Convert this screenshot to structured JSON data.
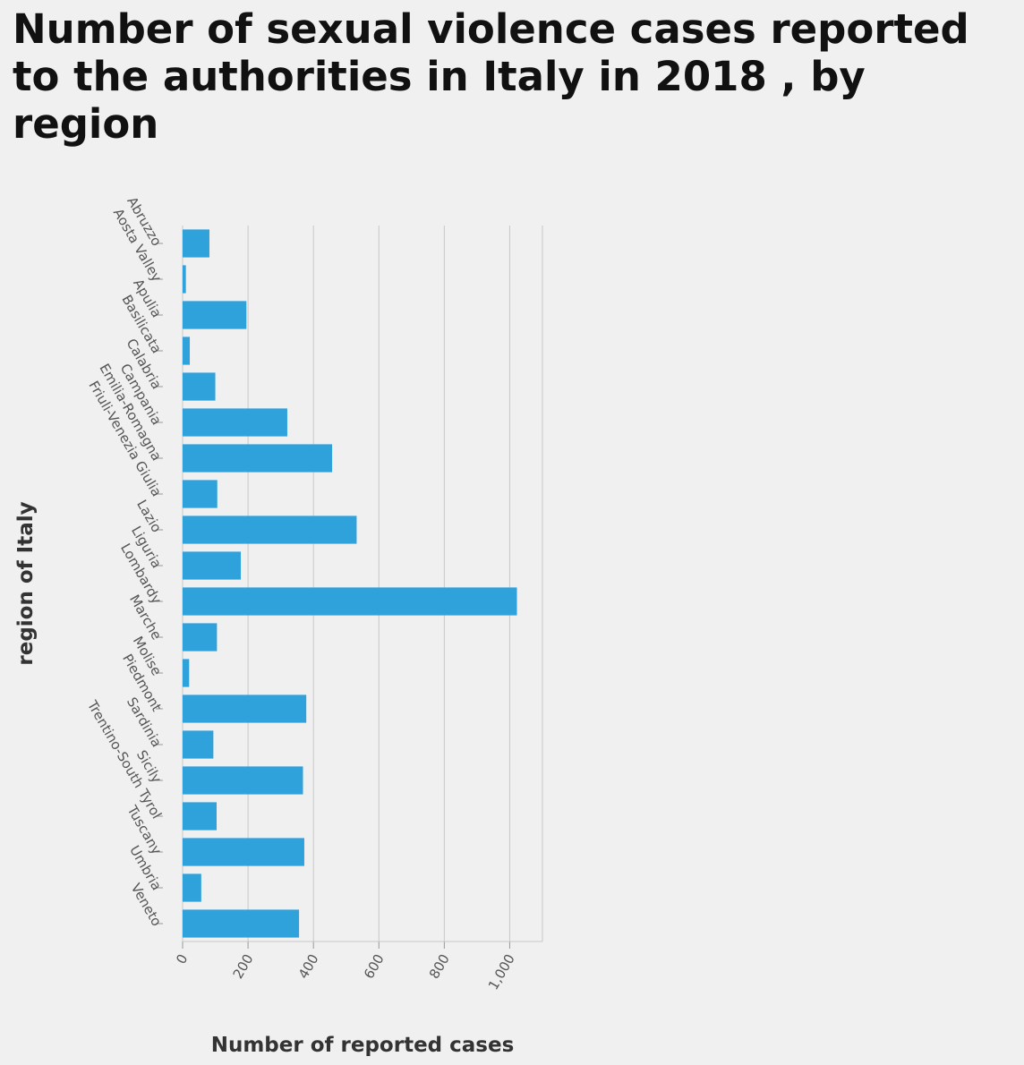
{
  "chart_data": {
    "type": "bar",
    "orientation": "horizontal",
    "title": "Number of sexual violence cases reported to the authorities in Italy in 2018 , by region",
    "xlabel": "Number of reported cases",
    "ylabel": "region of Italy",
    "categories": [
      "Abruzzo",
      "Aosta Valley",
      "Apulia",
      "Basilicata",
      "Calabria",
      "Campania",
      "Emilia-Romagna",
      "Friuli-Venezia Giulia",
      "Lazio",
      "Liguria",
      "Lombardy",
      "Marche",
      "Molise",
      "Piedmont",
      "Sardinia",
      "Sicily",
      "Trentino-South Tyrol",
      "Tuscany",
      "Umbria",
      "Veneto"
    ],
    "values": [
      82,
      10,
      195,
      22,
      100,
      320,
      457,
      106,
      532,
      178,
      1022,
      105,
      20,
      378,
      94,
      368,
      104,
      372,
      57,
      356
    ],
    "xlim": [
      0,
      1100
    ],
    "xticks": [
      0,
      200,
      400,
      600,
      800,
      1000
    ],
    "xtick_labels": [
      "0",
      "200",
      "400",
      "600",
      "800",
      "1,000"
    ],
    "grid": "vertical",
    "legend": "none",
    "bar_color": "#2fa1db"
  }
}
